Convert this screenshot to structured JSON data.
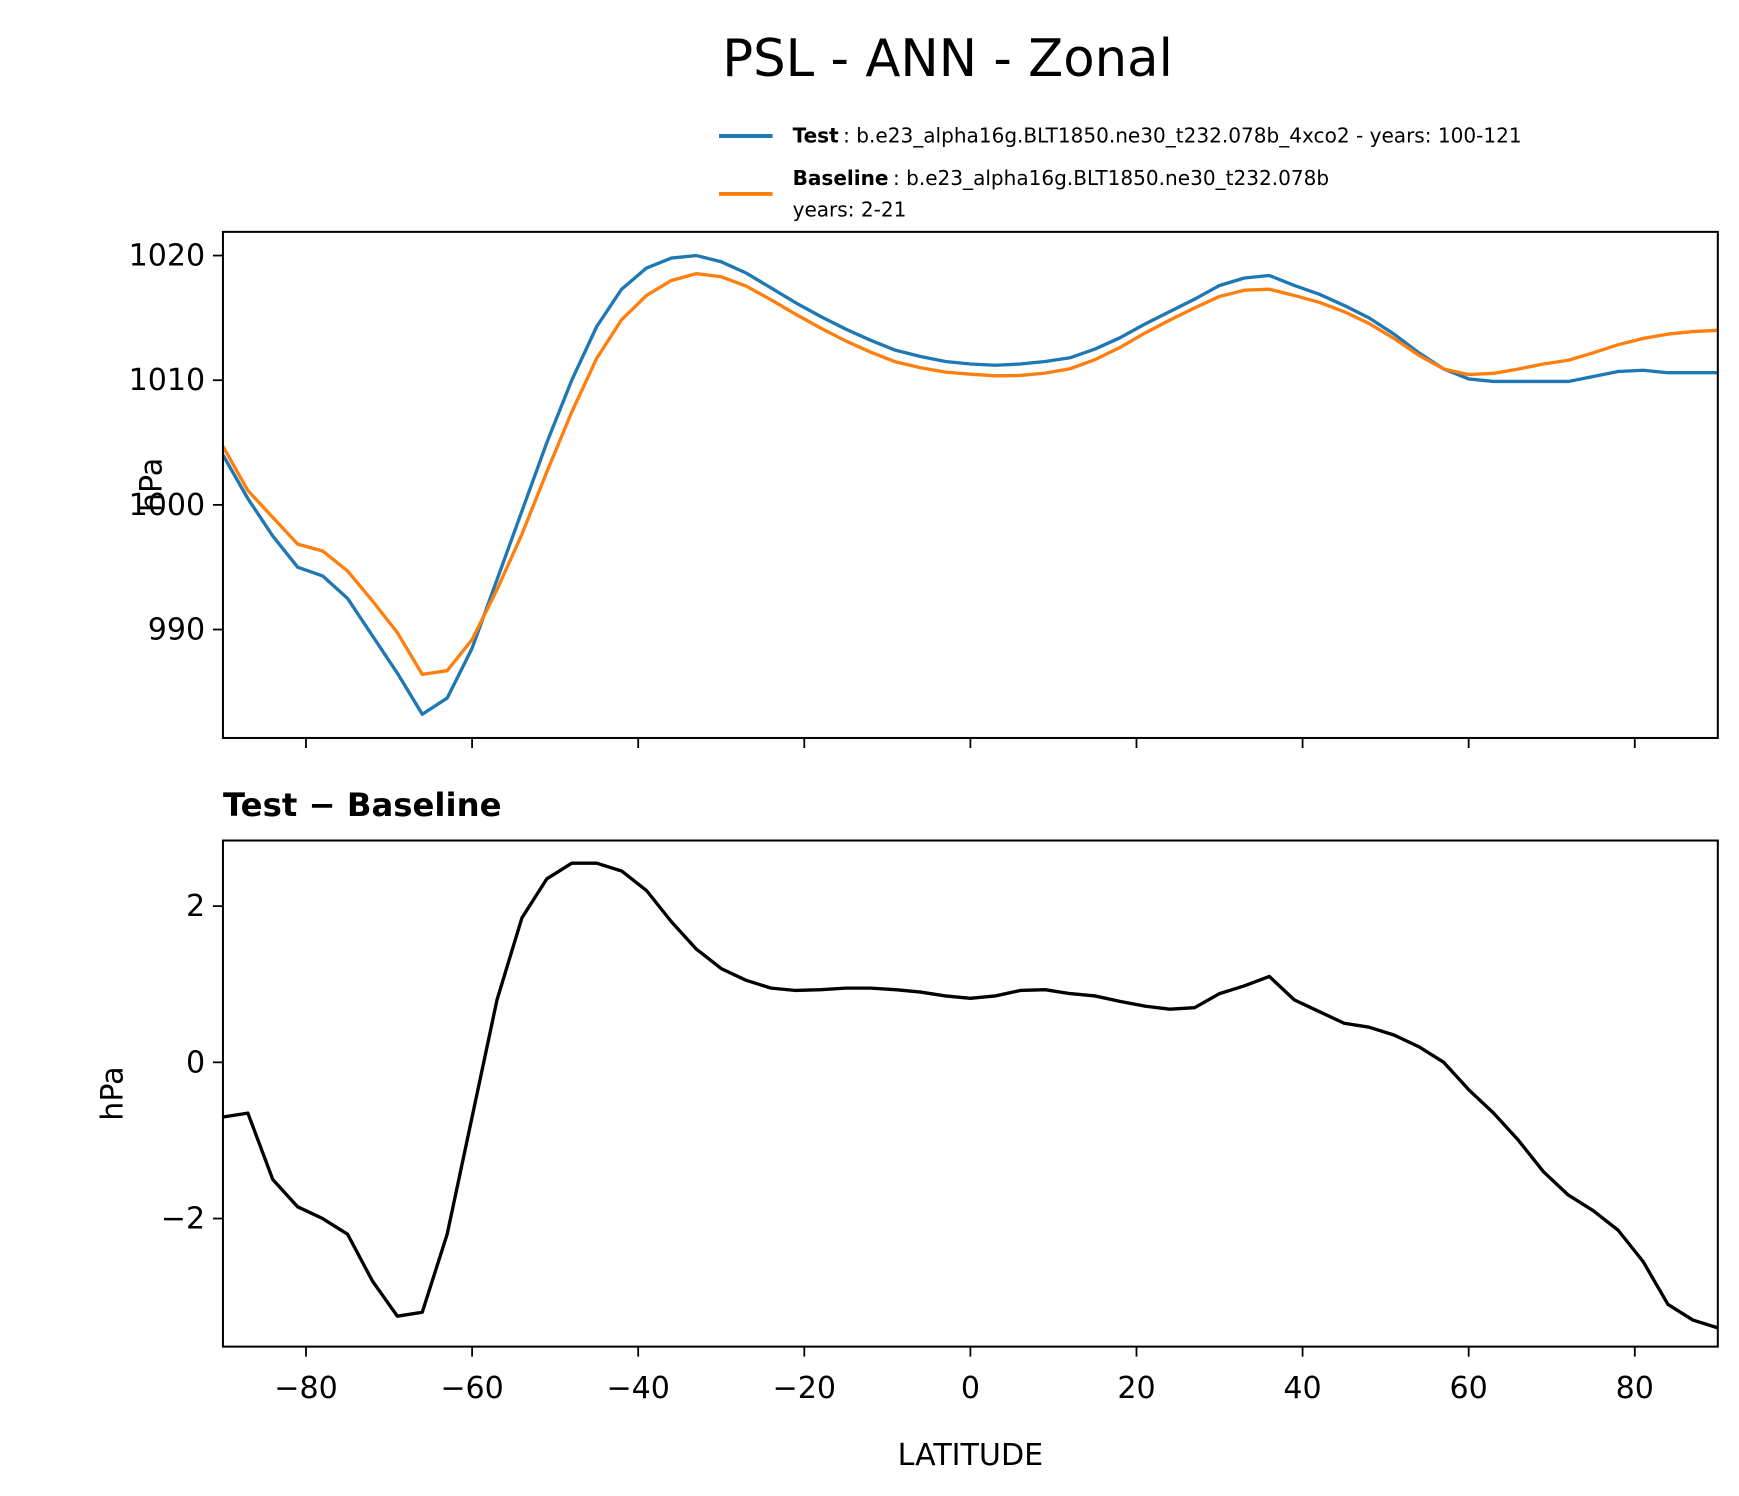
{
  "chart_data": [
    {
      "type": "line",
      "title": "PSL - ANN - Zonal",
      "ylabel": "hPa",
      "x": [
        -90,
        -87,
        -84,
        -81,
        -78,
        -75,
        -72,
        -69,
        -66,
        -63,
        -60,
        -57,
        -54,
        -51,
        -48,
        -45,
        -42,
        -39,
        -36,
        -33,
        -30,
        -27,
        -24,
        -21,
        -18,
        -15,
        -12,
        -9,
        -6,
        -3,
        0,
        3,
        6,
        9,
        12,
        15,
        18,
        21,
        24,
        27,
        30,
        33,
        36,
        39,
        42,
        45,
        48,
        51,
        54,
        57,
        60,
        63,
        66,
        69,
        72,
        75,
        78,
        81,
        84,
        87,
        90
      ],
      "series": [
        {
          "name": "Test",
          "legend_text": [
            ": b.e23_alpha16g.BLT1850.ne30_t232.078b_4xco2 - years: 100-121"
          ],
          "color": "#1f77b4",
          "values": [
            1004.0,
            1000.5,
            997.5,
            995.0,
            994.3,
            992.5,
            989.5,
            986.5,
            983.2,
            984.5,
            988.5,
            994.0,
            999.5,
            1005.0,
            1010.0,
            1014.3,
            1017.3,
            1019.0,
            1019.8,
            1020.0,
            1019.5,
            1018.6,
            1017.4,
            1016.2,
            1015.1,
            1014.1,
            1013.2,
            1012.4,
            1011.9,
            1011.5,
            1011.3,
            1011.2,
            1011.3,
            1011.5,
            1011.8,
            1012.5,
            1013.4,
            1014.5,
            1015.5,
            1016.5,
            1017.6,
            1018.2,
            1018.4,
            1017.6,
            1016.9,
            1016.0,
            1015.0,
            1013.7,
            1012.2,
            1010.9,
            1010.1,
            1009.9,
            1009.9,
            1009.9,
            1009.9,
            1010.3,
            1010.7,
            1010.8,
            1010.6,
            1010.6,
            1010.6
          ]
        },
        {
          "name": "Baseline",
          "legend_text": [
            ": b.e23_alpha16g.BLT1850.ne30_t232.078b",
            "years: 2-21"
          ],
          "color": "#ff7f0e",
          "values": [
            1004.7,
            1001.15,
            999.0,
            996.85,
            996.3,
            994.7,
            992.3,
            989.75,
            986.4,
            986.7,
            989.2,
            993.2,
            997.65,
            1002.65,
            1007.45,
            1011.75,
            1014.85,
            1016.8,
            1018.0,
            1018.55,
            1018.3,
            1017.55,
            1016.45,
            1015.28,
            1014.17,
            1013.15,
            1012.25,
            1011.47,
            1011.0,
            1010.65,
            1010.48,
            1010.35,
            1010.38,
            1010.57,
            1010.92,
            1011.65,
            1012.62,
            1013.78,
            1014.82,
            1015.8,
            1016.72,
            1017.22,
            1017.3,
            1016.8,
            1016.25,
            1015.5,
            1014.55,
            1013.35,
            1012.0,
            1010.9,
            1010.45,
            1010.55,
            1010.9,
            1011.3,
            1011.6,
            1012.2,
            1012.85,
            1013.35,
            1013.7,
            1013.9,
            1014.0
          ]
        }
      ],
      "xlim": [
        -90,
        90
      ],
      "ylim": [
        981.3,
        1021.9
      ],
      "xticks": [
        -80,
        -60,
        -40,
        -20,
        0,
        20,
        40,
        60,
        80
      ],
      "show_xtick_labels": false,
      "yticks": [
        990,
        1000,
        1010,
        1020
      ],
      "legend": "upper right"
    },
    {
      "type": "line",
      "title": "Test − Baseline",
      "ylabel": "hPa",
      "xlabel": "LATITUDE",
      "x": [
        -90,
        -87,
        -84,
        -81,
        -78,
        -75,
        -72,
        -69,
        -66,
        -63,
        -60,
        -57,
        -54,
        -51,
        -48,
        -45,
        -42,
        -39,
        -36,
        -33,
        -30,
        -27,
        -24,
        -21,
        -18,
        -15,
        -12,
        -9,
        -6,
        -3,
        0,
        3,
        6,
        9,
        12,
        15,
        18,
        21,
        24,
        27,
        30,
        33,
        36,
        39,
        42,
        45,
        48,
        51,
        54,
        57,
        60,
        63,
        66,
        69,
        72,
        75,
        78,
        81,
        84,
        87,
        90
      ],
      "series": [
        {
          "color": "#000000",
          "values": [
            -0.7,
            -0.65,
            -1.5,
            -1.85,
            -2.0,
            -2.2,
            -2.8,
            -3.25,
            -3.2,
            -2.2,
            -0.7,
            0.8,
            1.85,
            2.35,
            2.55,
            2.55,
            2.45,
            2.2,
            1.8,
            1.45,
            1.2,
            1.05,
            0.95,
            0.92,
            0.93,
            0.95,
            0.95,
            0.93,
            0.9,
            0.85,
            0.82,
            0.85,
            0.92,
            0.93,
            0.88,
            0.85,
            0.78,
            0.72,
            0.68,
            0.7,
            0.88,
            0.98,
            1.1,
            0.8,
            0.65,
            0.5,
            0.45,
            0.35,
            0.2,
            0.0,
            -0.35,
            -0.65,
            -1.0,
            -1.4,
            -1.7,
            -1.9,
            -2.15,
            -2.55,
            -3.1,
            -3.3,
            -3.4
          ]
        }
      ],
      "xlim": [
        -90,
        90
      ],
      "ylim": [
        -3.64,
        2.84
      ],
      "xticks": [
        {
          "value": -80,
          "label": "−80"
        },
        {
          "value": -60,
          "label": "−60"
        },
        {
          "value": -40,
          "label": "−40"
        },
        {
          "value": -20,
          "label": "−20"
        },
        0,
        20,
        40,
        60,
        80
      ],
      "show_xtick_labels": true,
      "yticks": [
        {
          "value": -2,
          "label": "−2"
        },
        0,
        2
      ]
    }
  ]
}
